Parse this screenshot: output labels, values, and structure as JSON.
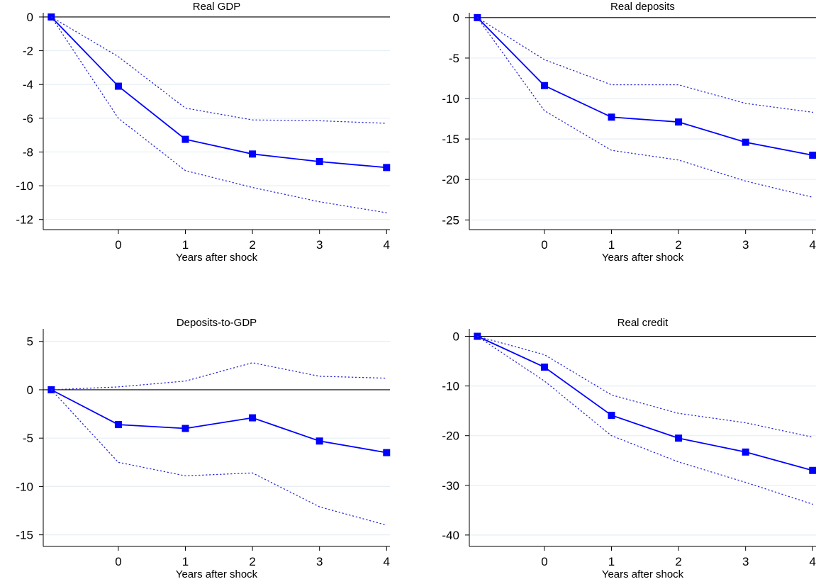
{
  "colors": {
    "line": "#0000ff",
    "marker": "#0000ff",
    "ci": "#2828d8",
    "grid": "#e6eef4"
  },
  "chart_data": [
    {
      "type": "line",
      "title": "Real GDP",
      "xlabel": "Years after shock",
      "ylabel": "",
      "x": [
        -1,
        0,
        1,
        2,
        3,
        4
      ],
      "xticks": [
        0,
        1,
        2,
        3,
        4
      ],
      "xlim": [
        -1.12,
        4.05
      ],
      "yticks": [
        0,
        -2,
        -4,
        -6,
        -8,
        -10,
        -12
      ],
      "ylim": [
        -12.6,
        0.25
      ],
      "series": [
        {
          "role": "estimate",
          "values": [
            0,
            -4.1,
            -7.25,
            -8.12,
            -8.57,
            -8.92
          ]
        },
        {
          "role": "upper",
          "values": [
            0,
            -2.35,
            -5.4,
            -6.1,
            -6.15,
            -6.3
          ]
        },
        {
          "role": "lower",
          "values": [
            0,
            -6.0,
            -9.1,
            -10.1,
            -10.95,
            -11.6
          ]
        }
      ],
      "grid": true,
      "zero_line": true
    },
    {
      "type": "line",
      "title": "Real deposits",
      "xlabel": "Years after shock",
      "ylabel": "",
      "x": [
        -1,
        0,
        1,
        2,
        3,
        4
      ],
      "xticks": [
        0,
        1,
        2,
        3,
        4
      ],
      "xlim": [
        -1.12,
        4.05
      ],
      "yticks": [
        0,
        -5,
        -10,
        -15,
        -20,
        -25
      ],
      "ylim": [
        -26.2,
        0.6
      ],
      "series": [
        {
          "role": "estimate",
          "values": [
            0,
            -8.4,
            -12.3,
            -12.9,
            -15.4,
            -17.0
          ]
        },
        {
          "role": "upper",
          "values": [
            0,
            -5.2,
            -8.3,
            -8.3,
            -10.6,
            -11.7
          ]
        },
        {
          "role": "lower",
          "values": [
            0,
            -11.5,
            -16.4,
            -17.6,
            -20.2,
            -22.2
          ]
        }
      ],
      "grid": true,
      "zero_line": true
    },
    {
      "type": "line",
      "title": "Deposits-to-GDP",
      "xlabel": "Years after shock",
      "ylabel": "",
      "x": [
        -1,
        0,
        1,
        2,
        3,
        4
      ],
      "xticks": [
        0,
        1,
        2,
        3,
        4
      ],
      "xlim": [
        -1.12,
        4.05
      ],
      "yticks": [
        5,
        0,
        -5,
        -10,
        -15
      ],
      "ylim": [
        -16.2,
        6.3
      ],
      "series": [
        {
          "role": "estimate",
          "values": [
            0,
            -3.6,
            -4.0,
            -2.9,
            -5.3,
            -6.5
          ]
        },
        {
          "role": "upper",
          "values": [
            0,
            0.3,
            0.9,
            2.8,
            1.4,
            1.2
          ]
        },
        {
          "role": "lower",
          "values": [
            0,
            -7.5,
            -8.9,
            -8.6,
            -12.1,
            -14.0
          ]
        }
      ],
      "grid": true,
      "zero_line": true
    },
    {
      "type": "line",
      "title": "Real credit",
      "xlabel": "Years after shock",
      "ylabel": "",
      "x": [
        -1,
        0,
        1,
        2,
        3,
        4
      ],
      "xticks": [
        0,
        1,
        2,
        3,
        4
      ],
      "xlim": [
        -1.12,
        4.05
      ],
      "yticks": [
        0,
        -10,
        -20,
        -30,
        -40
      ],
      "ylim": [
        -42.3,
        1.5
      ],
      "series": [
        {
          "role": "estimate",
          "values": [
            0,
            -6.2,
            -15.9,
            -20.5,
            -23.3,
            -27.0
          ]
        },
        {
          "role": "upper",
          "values": [
            0,
            -3.7,
            -11.8,
            -15.5,
            -17.4,
            -20.3
          ]
        },
        {
          "role": "lower",
          "values": [
            0,
            -9.0,
            -20.0,
            -25.3,
            -29.4,
            -33.8
          ]
        }
      ],
      "grid": true,
      "zero_line": true
    }
  ]
}
